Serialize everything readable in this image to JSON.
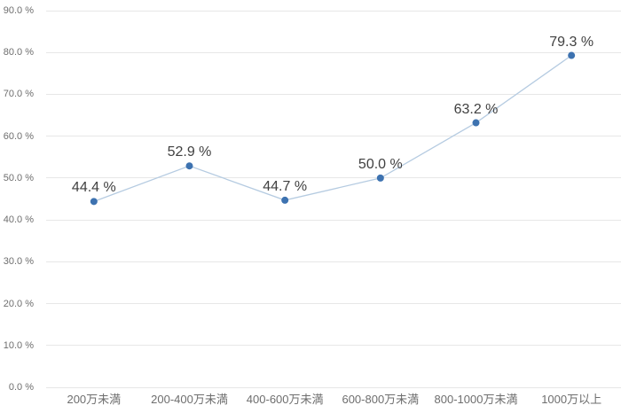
{
  "chart_data": {
    "type": "line",
    "title": "",
    "xlabel": "",
    "ylabel": "",
    "categories": [
      "200万未満",
      "200-400万未満",
      "400-600万未満",
      "600-800万未満",
      "800-1000万未満",
      "1000万以上"
    ],
    "values": [
      44.4,
      52.9,
      44.7,
      50.0,
      63.2,
      79.3
    ],
    "data_labels": [
      "44.4 %",
      "52.9 %",
      "44.7 %",
      "50.0 %",
      "63.2 %",
      "79.3 %"
    ],
    "y_ticks": [
      {
        "value": 0,
        "label": "0.0 %"
      },
      {
        "value": 10,
        "label": "10.0 %"
      },
      {
        "value": 20,
        "label": "20.0 %"
      },
      {
        "value": 30,
        "label": "30.0 %"
      },
      {
        "value": 40,
        "label": "40.0 %"
      },
      {
        "value": 50,
        "label": "50.0 %"
      },
      {
        "value": 60,
        "label": "60.0 %"
      },
      {
        "value": 70,
        "label": "70.0 %"
      },
      {
        "value": 80,
        "label": "80.0 %"
      },
      {
        "value": 90,
        "label": "90.0 %"
      }
    ],
    "ylim": [
      0,
      90
    ],
    "grid": true,
    "legend": "none",
    "colors": {
      "line": "#b5cbe1",
      "marker": "#3d72b0",
      "grid": "#e7e7e7",
      "axis_text": "#6e6e6e",
      "label_text": "#404040",
      "background": "#ffffff"
    }
  }
}
